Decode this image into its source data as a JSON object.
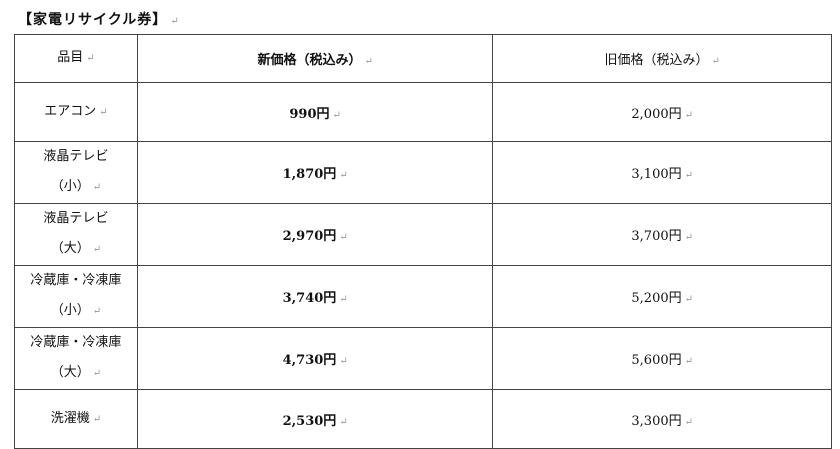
{
  "title": "【家電リサイクル券】",
  "table": {
    "headers": [
      "品目",
      "新価格（税込み）",
      "旧価格（税込み）"
    ],
    "rows": [
      {
        "item": "エアコン",
        "new_price": "990円",
        "old_price": "2,000円"
      },
      {
        "item": "液晶テレビ\n（小）",
        "new_price": "1,870円",
        "old_price": "3,100円"
      },
      {
        "item": "液晶テレビ\n（大）",
        "new_price": "2,970円",
        "old_price": "3,700円"
      },
      {
        "item": "冷蔵庫・冷凍庫\n（小）",
        "new_price": "3,740円",
        "old_price": "5,200円"
      },
      {
        "item": "冷蔵庫・冷凍庫\n（大）",
        "new_price": "4,730円",
        "old_price": "5,600円"
      },
      {
        "item": "洗濯機",
        "new_price": "2,530円",
        "old_price": "3,300円"
      }
    ]
  }
}
